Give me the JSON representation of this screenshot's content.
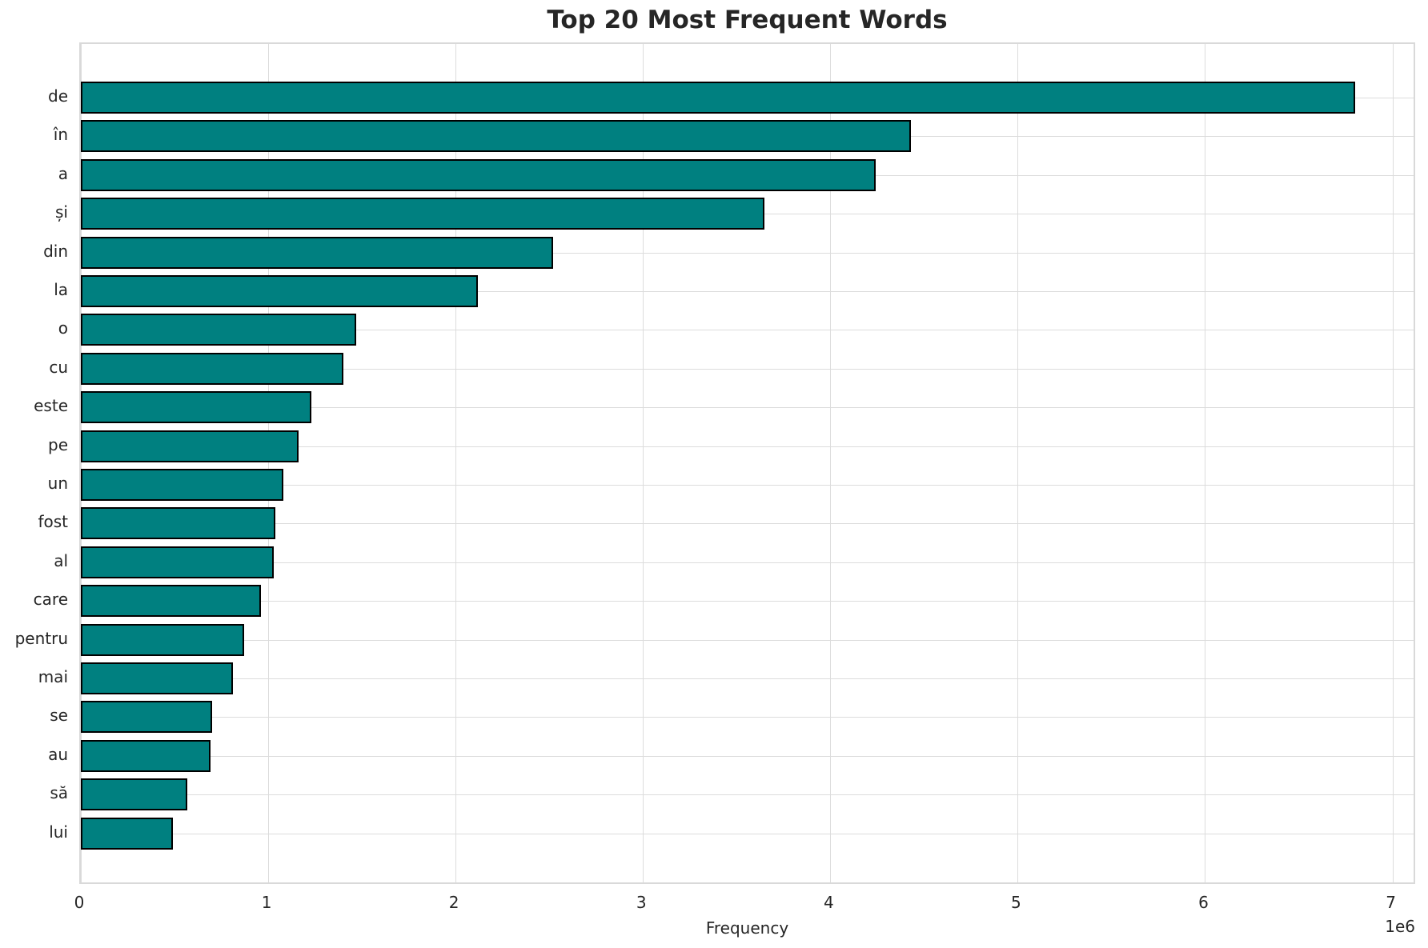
{
  "chart_data": {
    "type": "bar",
    "orientation": "horizontal",
    "title": "Top 20 Most Frequent Words",
    "xlabel": "Frequency",
    "ylabel": "",
    "x_tick_offset_text": "1e6",
    "x_ticks_millions": [
      0,
      1,
      2,
      3,
      4,
      5,
      6,
      7
    ],
    "xlim": [
      0,
      7130000
    ],
    "grid": true,
    "legend": "none",
    "categories": [
      "de",
      "în",
      "a",
      "și",
      "din",
      "la",
      "o",
      "cu",
      "este",
      "pe",
      "un",
      "fost",
      "al",
      "care",
      "pentru",
      "mai",
      "se",
      "au",
      "să",
      "lui"
    ],
    "values": [
      6800000,
      4430000,
      4240000,
      3650000,
      2520000,
      2120000,
      1470000,
      1400000,
      1230000,
      1160000,
      1080000,
      1040000,
      1030000,
      960000,
      870000,
      810000,
      700000,
      690000,
      570000,
      490000
    ],
    "bar_color": "#008080",
    "bar_edge_color": "#000000",
    "grid_color": "#dcdcdc",
    "spine_color": "#d9d9d9",
    "text_color": "#262626"
  }
}
